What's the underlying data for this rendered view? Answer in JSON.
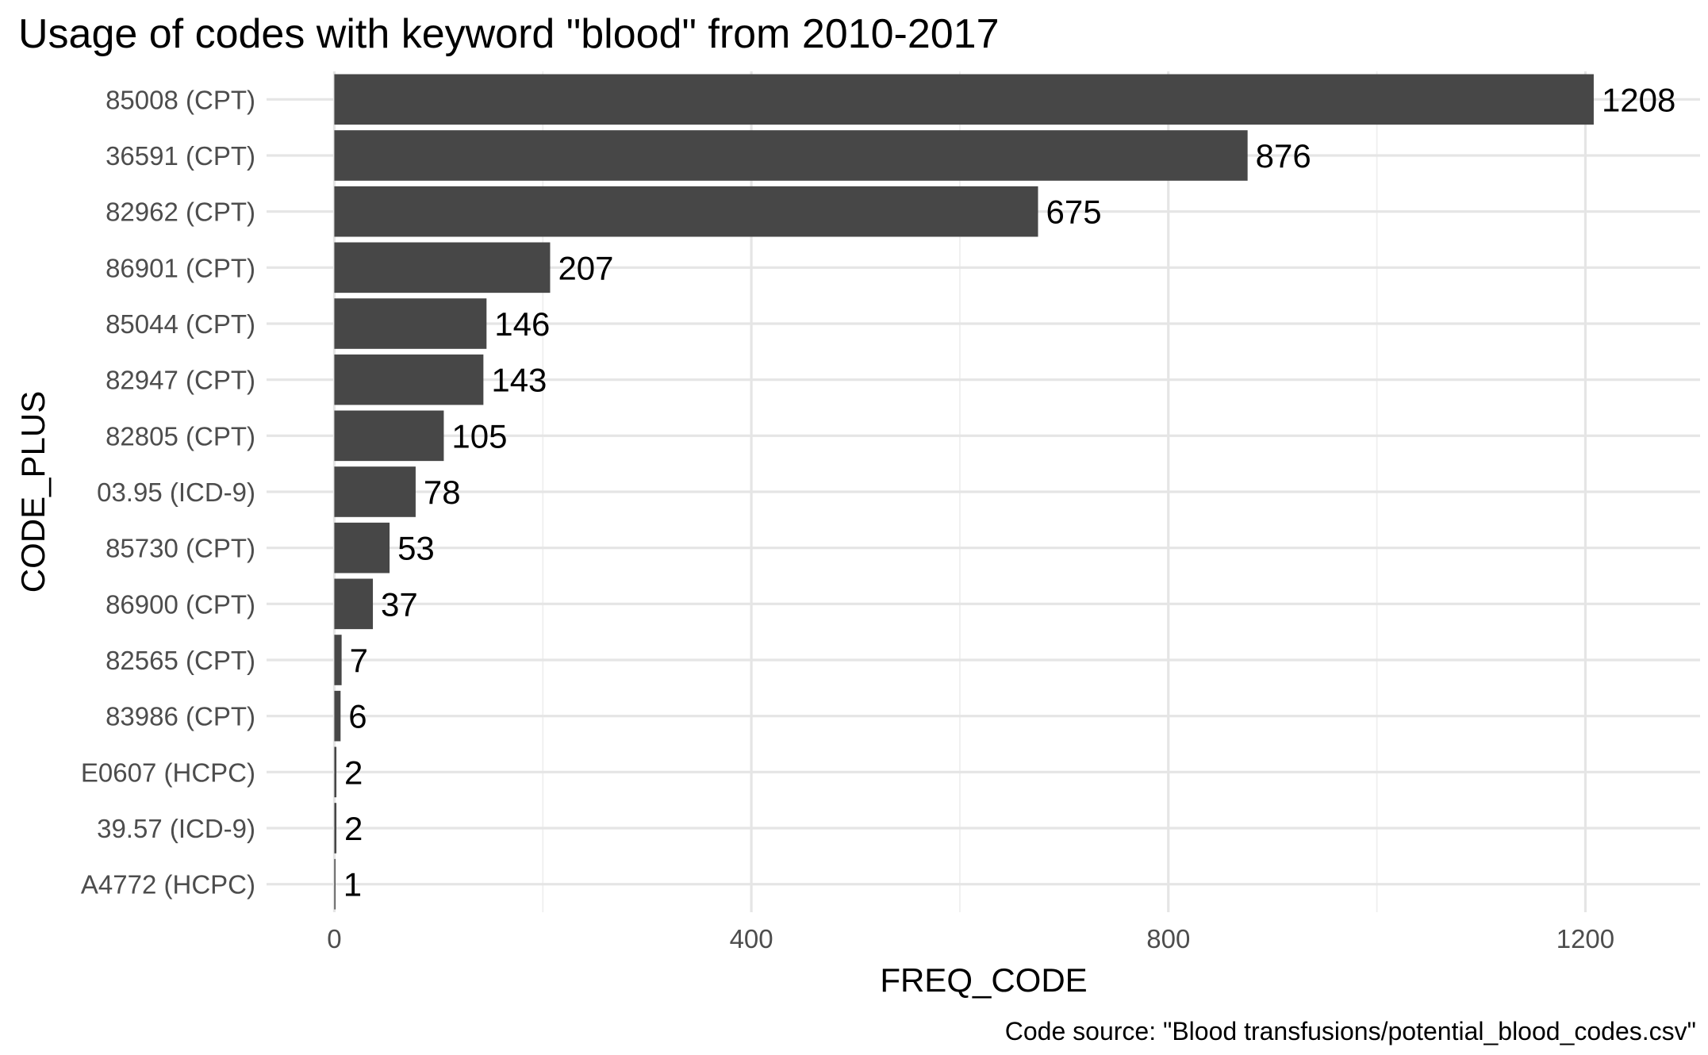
{
  "chart_data": {
    "type": "bar",
    "orientation": "horizontal",
    "title": "Usage of codes with keyword \"blood\" from 2010-2017",
    "xlabel": "FREQ_CODE",
    "ylabel": "CODE_PLUS",
    "caption": "Code source: \"Blood transfusions/potential_blood_codes.csv\"",
    "categories": [
      "85008 (CPT)",
      "36591 (CPT)",
      "82962 (CPT)",
      "86901 (CPT)",
      "85044 (CPT)",
      "82947 (CPT)",
      "82805 (CPT)",
      "03.95 (ICD-9)",
      "85730 (CPT)",
      "86900 (CPT)",
      "82565 (CPT)",
      "83986 (CPT)",
      "E0607 (HCPC)",
      "39.57 (ICD-9)",
      "A4772 (HCPC)"
    ],
    "values": [
      1208,
      876,
      675,
      207,
      146,
      143,
      105,
      78,
      53,
      37,
      7,
      6,
      2,
      2,
      1
    ],
    "xlim": [
      -65,
      1310
    ],
    "x_ticks": [
      0,
      400,
      800,
      1200
    ],
    "x_minor_ticks": [
      200,
      600,
      1000
    ],
    "grid": true,
    "data_labels": true,
    "bar_color": "#474747"
  }
}
